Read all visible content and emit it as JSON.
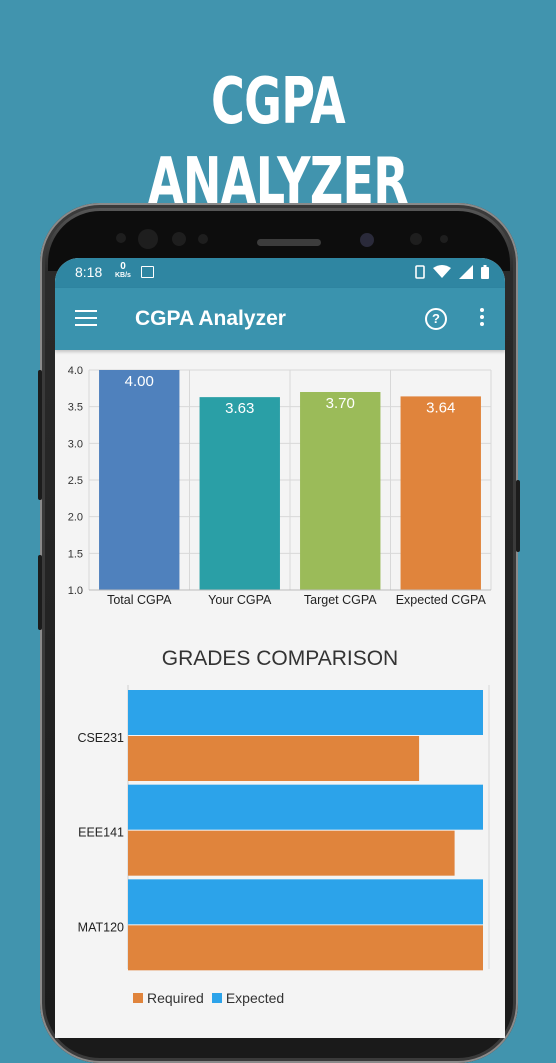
{
  "promo": {
    "title": "CGPA ANALYZER"
  },
  "status_bar": {
    "time": "8:18",
    "net_speed": "0",
    "net_unit": "KB/s"
  },
  "app_bar": {
    "title": "CGPA Analyzer",
    "help_label": "?"
  },
  "colors": {
    "background": "#4194ae",
    "app_bar": "#3a93ae",
    "status_bar": "#2f86a2",
    "required": "#e0843c",
    "expected": "#2ca3ea"
  },
  "chart_data": [
    {
      "type": "bar",
      "categories": [
        "Total CGPA",
        "Your CGPA",
        "Target CGPA",
        "Expected CGPA"
      ],
      "values": [
        4.0,
        3.63,
        3.7,
        3.64
      ],
      "value_labels": [
        "4.00",
        "3.63",
        "3.70",
        "3.64"
      ],
      "colors": [
        "#4f81bd",
        "#2a9fa6",
        "#9bbb59",
        "#e0843c"
      ],
      "ylim": [
        1.0,
        4.0
      ],
      "yticks": [
        "1.0",
        "1.5",
        "2.0",
        "2.5",
        "3.0",
        "3.5",
        "4.0"
      ],
      "grid": true
    },
    {
      "type": "bar",
      "orientation": "horizontal",
      "title": "GRADES COMPARISON",
      "categories": [
        "CSE231",
        "EEE141",
        "MAT120"
      ],
      "series": [
        {
          "name": "Expected",
          "color": "#2ca3ea",
          "values": [
            1.0,
            1.0,
            1.0
          ]
        },
        {
          "name": "Required",
          "color": "#e0843c",
          "values": [
            0.82,
            0.92,
            1.0
          ]
        }
      ],
      "xlim": [
        0,
        1
      ],
      "legend": "bottom-left"
    }
  ]
}
